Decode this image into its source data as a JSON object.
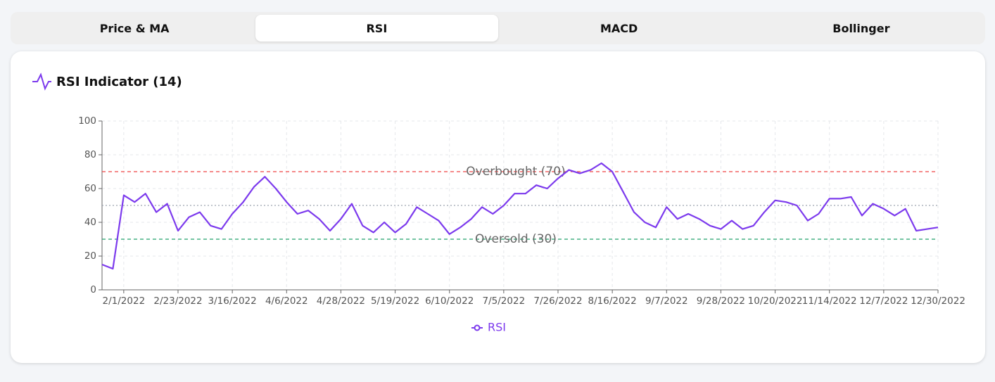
{
  "tabs": [
    {
      "label": "Price & MA",
      "active": false
    },
    {
      "label": "RSI",
      "active": true
    },
    {
      "label": "MACD",
      "active": false
    },
    {
      "label": "Bollinger",
      "active": false
    }
  ],
  "chart_data": {
    "type": "line",
    "title": "RSI Indicator (14)",
    "categories": [
      null,
      null,
      "2/1/2022",
      null,
      null,
      null,
      null,
      "2/23/2022",
      null,
      null,
      null,
      null,
      "3/16/2022",
      null,
      null,
      null,
      null,
      "4/6/2022",
      null,
      null,
      null,
      null,
      "4/28/2022",
      null,
      null,
      null,
      null,
      "5/19/2022",
      null,
      null,
      null,
      null,
      "6/10/2022",
      null,
      null,
      null,
      null,
      "7/5/2022",
      null,
      null,
      null,
      null,
      "7/26/2022",
      null,
      null,
      null,
      null,
      "8/16/2022",
      null,
      null,
      null,
      null,
      "9/7/2022",
      null,
      null,
      null,
      null,
      "9/28/2022",
      null,
      null,
      null,
      null,
      "10/20/2022",
      null,
      null,
      null,
      null,
      "11/14/2022",
      null,
      null,
      null,
      null,
      "12/7/2022",
      null,
      null,
      null,
      null,
      "12/30/2022"
    ],
    "series": [
      {
        "name": "RSI",
        "color": "#7c3aed",
        "values": [
          15,
          12.5,
          56,
          52,
          57,
          46,
          51,
          35,
          43,
          46,
          38,
          36,
          45,
          52,
          61,
          67,
          60,
          52,
          45,
          47,
          42,
          35,
          42,
          51,
          38,
          34,
          40,
          34,
          39,
          49,
          45,
          41,
          33,
          37,
          42,
          49,
          45,
          50,
          57,
          57,
          62,
          60,
          66,
          71,
          69,
          71,
          75,
          70,
          58,
          46,
          40,
          37,
          49,
          42,
          45,
          42,
          38,
          36,
          41,
          36,
          38,
          46,
          53,
          52,
          50,
          41,
          45,
          54,
          54,
          55,
          44,
          51,
          48,
          44,
          48,
          35,
          36,
          37
        ]
      }
    ],
    "reference_lines": [
      {
        "value": 70,
        "label": "Overbought (70)",
        "color": "#ef4444"
      },
      {
        "value": 30,
        "label": "Oversold (30)",
        "color": "#22a06b"
      },
      {
        "value": 50,
        "color": "#9ca3af"
      }
    ],
    "ylim": [
      0,
      100
    ],
    "yticks": [
      0,
      20,
      40,
      60,
      80,
      100
    ],
    "grid": true
  }
}
